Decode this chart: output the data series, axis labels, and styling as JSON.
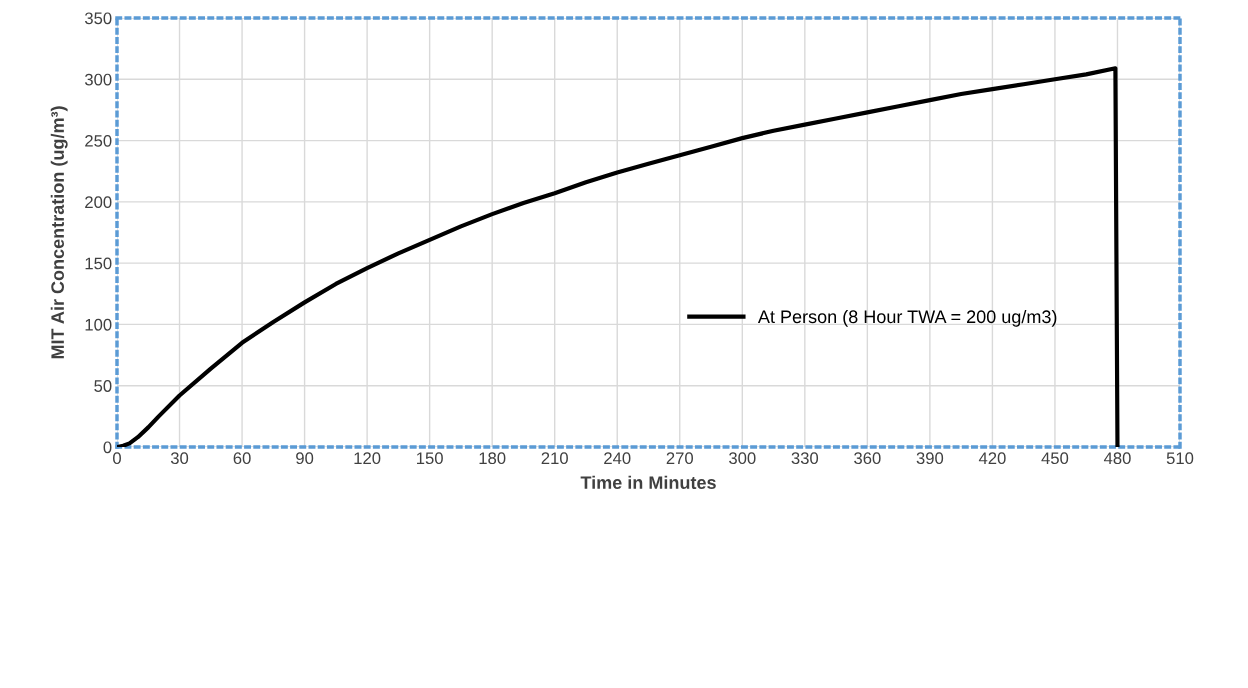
{
  "chart_data": {
    "type": "line",
    "xlabel": "Time in Minutes",
    "ylabel": "MIT Air Concentration (ug/m³)",
    "series": [
      {
        "name": "At Person (8 Hour TWA = 200 ug/m3)",
        "color": "#000000",
        "x": [
          0,
          3,
          6,
          10,
          15,
          20,
          30,
          45,
          60,
          75,
          90,
          105,
          120,
          135,
          150,
          165,
          180,
          195,
          210,
          225,
          240,
          255,
          270,
          285,
          300,
          315,
          330,
          345,
          360,
          375,
          390,
          405,
          420,
          435,
          450,
          465,
          479,
          480
        ],
        "values": [
          0,
          1,
          3,
          8,
          16,
          25,
          42,
          64,
          85,
          102,
          118,
          133,
          146,
          158,
          169,
          180,
          190,
          199,
          207,
          216,
          224,
          231,
          238,
          245,
          252,
          258,
          263,
          268,
          273,
          278,
          283,
          288,
          292,
          296,
          300,
          304,
          309,
          0
        ]
      }
    ],
    "xlim": [
      0,
      510
    ],
    "xticks": [
      0,
      30,
      60,
      90,
      120,
      150,
      180,
      210,
      240,
      270,
      300,
      330,
      360,
      390,
      420,
      450,
      480,
      510
    ],
    "ylim": [
      0,
      350
    ],
    "yticks": [
      0,
      50,
      100,
      150,
      200,
      250,
      300,
      350
    ],
    "grid": true,
    "legend": "center right",
    "marker": "none",
    "line_style": "solid"
  }
}
